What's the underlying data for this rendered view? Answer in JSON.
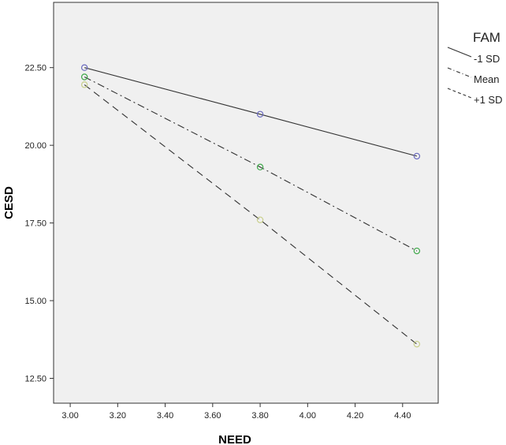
{
  "chart_data": {
    "type": "line",
    "xlabel": "NEED",
    "ylabel": "CESD",
    "xlim": [
      2.93,
      4.55
    ],
    "ylim": [
      11.7,
      24.6
    ],
    "xticks": [
      "3.00",
      "3.20",
      "3.40",
      "3.60",
      "3.80",
      "4.00",
      "4.20",
      "4.40"
    ],
    "yticks": [
      "12.50",
      "15.00",
      "17.50",
      "20.00",
      "22.50"
    ],
    "x": [
      3.06,
      3.8,
      4.46
    ],
    "series": [
      {
        "name": "-1 SD",
        "values": [
          22.5,
          21.0,
          19.65
        ],
        "line_style": "solid",
        "marker_color": "#6b6bbf"
      },
      {
        "name": "Mean",
        "values": [
          22.2,
          19.3,
          16.6
        ],
        "line_style": "dash-dot",
        "marker_color": "#3fa84a"
      },
      {
        "name": "+1 SD",
        "values": [
          21.95,
          17.6,
          13.6
        ],
        "line_style": "dashed",
        "marker_color": "#c8cf8a"
      }
    ],
    "legend": {
      "title": "FAM",
      "position": "right"
    },
    "grid": false,
    "plot_background": "#f0f0f0"
  }
}
